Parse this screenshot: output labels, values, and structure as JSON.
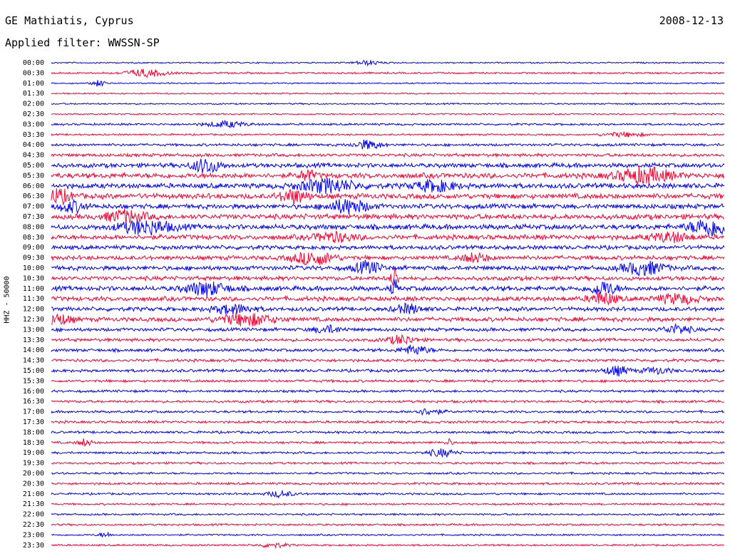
{
  "header": {
    "station": "GE Mathiatis, Cyprus",
    "date": "2008-12-13",
    "filter": "Applied filter: WWSSN-SP"
  },
  "chart_data": {
    "type": "line",
    "ylabel": "HHZ - 50000",
    "rows": [
      "00:00",
      "00:30",
      "01:00",
      "01:30",
      "02:00",
      "02:30",
      "03:00",
      "03:30",
      "04:00",
      "04:30",
      "05:00",
      "05:30",
      "06:00",
      "06:30",
      "07:00",
      "07:30",
      "08:00",
      "08:30",
      "09:00",
      "09:30",
      "10:00",
      "10:30",
      "11:00",
      "11:30",
      "12:00",
      "12:30",
      "13:00",
      "13:30",
      "14:00",
      "14:30",
      "15:00",
      "15:30",
      "16:00",
      "16:30",
      "17:00",
      "17:30",
      "18:00",
      "18:30",
      "19:00",
      "19:30",
      "20:00",
      "20:30",
      "21:00",
      "21:30",
      "22:00",
      "22:30",
      "23:00",
      "23:30"
    ],
    "colors": [
      "#0000ff",
      "#ff0033"
    ],
    "activity": [
      0.8,
      1.0,
      0.8,
      0.8,
      0.9,
      0.8,
      1.2,
      1.0,
      1.5,
      1.8,
      2.6,
      3.0,
      3.0,
      3.0,
      2.8,
      3.0,
      3.0,
      2.8,
      2.4,
      2.4,
      2.6,
      2.4,
      2.8,
      2.6,
      2.4,
      2.4,
      2.0,
      1.8,
      1.8,
      1.6,
      1.7,
      1.5,
      1.4,
      1.4,
      1.4,
      1.4,
      1.4,
      1.3,
      1.3,
      1.2,
      1.2,
      1.3,
      1.2,
      1.1,
      1.1,
      1.1,
      1.0,
      1.0
    ],
    "events": [
      {
        "row": 0,
        "x": 0.47,
        "amp": 3,
        "width": 0.02
      },
      {
        "row": 1,
        "x": 0.14,
        "amp": 5,
        "width": 0.03
      },
      {
        "row": 2,
        "x": 0.07,
        "amp": 4,
        "width": 0.01
      },
      {
        "row": 6,
        "x": 0.26,
        "amp": 4,
        "width": 0.03
      },
      {
        "row": 7,
        "x": 0.85,
        "amp": 3,
        "width": 0.03
      },
      {
        "row": 8,
        "x": 0.47,
        "amp": 6,
        "width": 0.02
      },
      {
        "row": 10,
        "x": 0.23,
        "amp": 10,
        "width": 0.02
      },
      {
        "row": 11,
        "x": 0.38,
        "amp": 8,
        "width": 0.01
      },
      {
        "row": 11,
        "x": 0.88,
        "amp": 10,
        "width": 0.04
      },
      {
        "row": 12,
        "x": 0.41,
        "amp": 9,
        "width": 0.04
      },
      {
        "row": 12,
        "x": 0.57,
        "amp": 7,
        "width": 0.03
      },
      {
        "row": 13,
        "x": 0.36,
        "amp": 9,
        "width": 0.02
      },
      {
        "row": 13,
        "x": 0.01,
        "amp": 9,
        "width": 0.02
      },
      {
        "row": 14,
        "x": 0.44,
        "amp": 9,
        "width": 0.03
      },
      {
        "row": 14,
        "x": 0.03,
        "amp": 7,
        "width": 0.02
      },
      {
        "row": 15,
        "x": 0.11,
        "amp": 8,
        "width": 0.03
      },
      {
        "row": 16,
        "x": 0.14,
        "amp": 9,
        "width": 0.04
      },
      {
        "row": 16,
        "x": 0.98,
        "amp": 12,
        "width": 0.03
      },
      {
        "row": 17,
        "x": 0.42,
        "amp": 6,
        "width": 0.03
      },
      {
        "row": 17,
        "x": 0.92,
        "amp": 6,
        "width": 0.03
      },
      {
        "row": 19,
        "x": 0.39,
        "amp": 9,
        "width": 0.03
      },
      {
        "row": 19,
        "x": 0.63,
        "amp": 6,
        "width": 0.02
      },
      {
        "row": 20,
        "x": 0.47,
        "amp": 8,
        "width": 0.02
      },
      {
        "row": 20,
        "x": 0.88,
        "amp": 9,
        "width": 0.03
      },
      {
        "row": 21,
        "x": 0.51,
        "amp": 16,
        "width": 0.005
      },
      {
        "row": 22,
        "x": 0.23,
        "amp": 9,
        "width": 0.03
      },
      {
        "row": 22,
        "x": 0.51,
        "amp": 12,
        "width": 0.005
      },
      {
        "row": 22,
        "x": 0.82,
        "amp": 9,
        "width": 0.02
      },
      {
        "row": 23,
        "x": 0.82,
        "amp": 8,
        "width": 0.02
      },
      {
        "row": 23,
        "x": 0.93,
        "amp": 6,
        "width": 0.03
      },
      {
        "row": 24,
        "x": 0.27,
        "amp": 6,
        "width": 0.03
      },
      {
        "row": 24,
        "x": 0.53,
        "amp": 6,
        "width": 0.02
      },
      {
        "row": 25,
        "x": 0.01,
        "amp": 7,
        "width": 0.02
      },
      {
        "row": 25,
        "x": 0.29,
        "amp": 8,
        "width": 0.04
      },
      {
        "row": 26,
        "x": 0.41,
        "amp": 5,
        "width": 0.02
      },
      {
        "row": 26,
        "x": 0.93,
        "amp": 6,
        "width": 0.02
      },
      {
        "row": 27,
        "x": 0.52,
        "amp": 6,
        "width": 0.02
      },
      {
        "row": 28,
        "x": 0.54,
        "amp": 6,
        "width": 0.02
      },
      {
        "row": 30,
        "x": 0.84,
        "amp": 6,
        "width": 0.02
      },
      {
        "row": 30,
        "x": 0.9,
        "amp": 4,
        "width": 0.02
      },
      {
        "row": 34,
        "x": 0.56,
        "amp": 4,
        "width": 0.02
      },
      {
        "row": 37,
        "x": 0.05,
        "amp": 5,
        "width": 0.01
      },
      {
        "row": 37,
        "x": 0.59,
        "amp": 5,
        "width": 0.005
      },
      {
        "row": 38,
        "x": 0.58,
        "amp": 5,
        "width": 0.02
      },
      {
        "row": 42,
        "x": 0.34,
        "amp": 4,
        "width": 0.02
      },
      {
        "row": 46,
        "x": 0.08,
        "amp": 3,
        "width": 0.01
      },
      {
        "row": 47,
        "x": 0.33,
        "amp": 3,
        "width": 0.02
      }
    ]
  }
}
